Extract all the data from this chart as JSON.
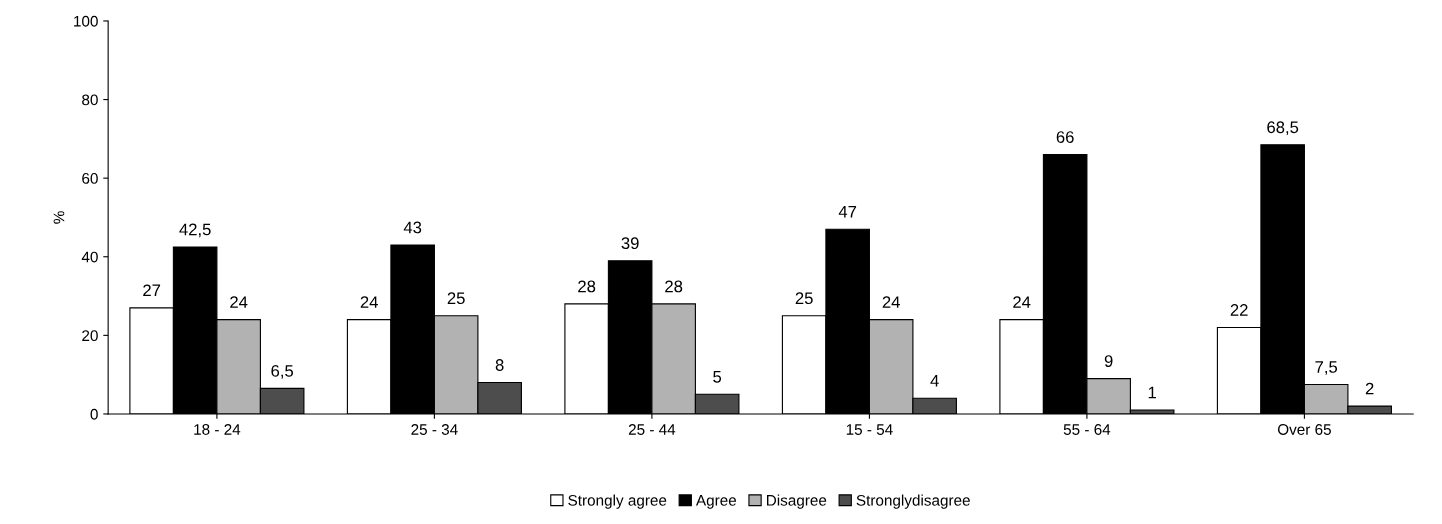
{
  "chart_data": {
    "type": "bar",
    "ylabel": "%",
    "categories": [
      "18 - 24",
      "25 - 34",
      "25 - 44",
      "15 - 54",
      "55 - 64",
      "Over 65"
    ],
    "series": [
      {
        "name": "Strongly agree",
        "color": "#ffffff",
        "values": [
          27,
          24,
          28,
          25,
          24,
          22
        ],
        "value_labels": [
          "27",
          "24",
          "28",
          "25",
          "24",
          "22"
        ]
      },
      {
        "name": "Agree",
        "color": "#000000",
        "values": [
          42.5,
          43,
          39,
          47,
          66,
          68.5
        ],
        "value_labels": [
          "42,5",
          "43",
          "39",
          "47",
          "66",
          "68,5"
        ]
      },
      {
        "name": "Disagree",
        "color": "#b2b2b2",
        "values": [
          24,
          25,
          28,
          24,
          9,
          7.5
        ],
        "value_labels": [
          "24",
          "25",
          "28",
          "24",
          "9",
          "7,5"
        ]
      },
      {
        "name": "Stronglydisagree",
        "color": "#4d4d4d",
        "values": [
          6.5,
          8,
          5,
          4,
          1,
          2
        ],
        "value_labels": [
          "6,5",
          "8",
          "5",
          "4",
          "1",
          "2"
        ]
      }
    ],
    "ylim": [
      0,
      100
    ],
    "yticks": [
      0,
      20,
      40,
      60,
      80,
      100
    ],
    "grid": false,
    "legend": "bottom"
  }
}
